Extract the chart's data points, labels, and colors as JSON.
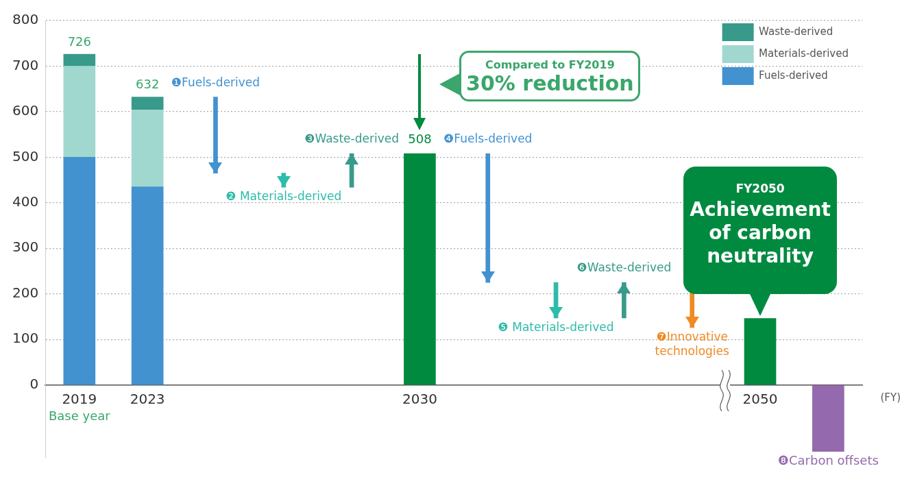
{
  "chart_data": {
    "type": "bar",
    "stacked": true,
    "categories": [
      "2019",
      "2023",
      null,
      null,
      null,
      "2030",
      null,
      null,
      null,
      null,
      "2050",
      null
    ],
    "xlabel": "(FY)",
    "ylim": [
      -160,
      800
    ],
    "yticks": [
      0,
      100,
      200,
      300,
      400,
      500,
      600,
      700,
      800
    ],
    "grid": "y",
    "legend": "top right",
    "series": [
      {
        "name": "Fuels-derived",
        "color": "#4292d0",
        "values": [
          500,
          435,
          null,
          null,
          null,
          null,
          null,
          null,
          null,
          null,
          null,
          null
        ]
      },
      {
        "name": "Materials-derived",
        "color": "#a0d8cf",
        "values": [
          200,
          169,
          null,
          null,
          null,
          null,
          null,
          null,
          null,
          null,
          null,
          null
        ]
      },
      {
        "name": "Waste-derived",
        "color": "#389a8b",
        "values": [
          26,
          28,
          null,
          null,
          null,
          null,
          null,
          null,
          null,
          null,
          null,
          null
        ]
      },
      {
        "color": "#008a3f",
        "values": [
          null,
          null,
          null,
          null,
          null,
          508,
          null,
          null,
          null,
          null,
          146,
          null
        ],
        "value_labels": [
          null,
          null,
          null,
          null,
          null,
          "508",
          null,
          null,
          null,
          null,
          null,
          null
        ]
      },
      {
        "colors": [
          null,
          null,
          "#4292d0",
          "#2cbcaa",
          "#389a8b",
          null,
          "#4292d0",
          "#2cbcaa",
          "#389a8b",
          "#f08a24",
          null,
          null
        ],
        "values": [
          null,
          null,
          -167,
          -31,
          74,
          null,
          -283,
          -78,
          78,
          -99,
          null,
          null
        ],
        "base": [
          null,
          null,
          632,
          465,
          434,
          null,
          508,
          225,
          147,
          225,
          null,
          null
        ],
        "value_labels": [
          null,
          null,
          "❶Fuels-derived",
          "❷ Materials-derived",
          "❸Waste-derived",
          null,
          "❹Fuels-derived",
          "❺ Materials-derived",
          "❻Waste-derived",
          "❼Innovative technologies",
          null,
          null
        ]
      },
      {
        "color": "#9569ad",
        "values": [
          null,
          null,
          null,
          null,
          null,
          null,
          null,
          null,
          null,
          null,
          null,
          -146
        ],
        "value_labels": [
          null,
          null,
          null,
          null,
          null,
          null,
          null,
          null,
          null,
          null,
          null,
          "❽Carbon offsets"
        ]
      }
    ],
    "totals": [
      "726",
      "632",
      null,
      null,
      null,
      null,
      null,
      null,
      null,
      null,
      null,
      null
    ],
    "annotations": [
      "Base year",
      "Compared to FY2019\n30% reduction",
      {
        "text": "FY2050\nAchievement of carbon neutrality",
        "x": "2050",
        "y": 146
      }
    ]
  }
}
